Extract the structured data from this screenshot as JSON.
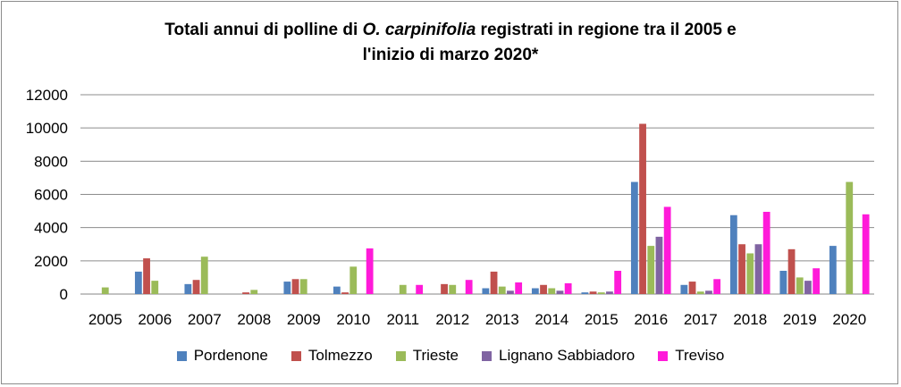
{
  "title": {
    "pre": "Totali annui di polline di ",
    "italic": "O. carpinifolia",
    "post": " registrati in regione tra il 2005 e",
    "line2": "l'inizio di marzo 2020*"
  },
  "chart_data": {
    "type": "bar",
    "title": "Totali annui di polline di O. carpinifolia registrati in regione tra il 2005 e l'inizio di marzo 2020*",
    "xlabel": "",
    "ylabel": "",
    "ylim": [
      0,
      12000
    ],
    "yticks": [
      0,
      2000,
      4000,
      6000,
      8000,
      10000,
      12000
    ],
    "ytick_labels": [
      "0",
      "2000",
      "4000",
      "6000",
      "8000",
      "10000",
      "12000"
    ],
    "grid": true,
    "legend_position": "bottom",
    "categories": [
      "2005",
      "2006",
      "2007",
      "2008",
      "2009",
      "2010",
      "2011",
      "2012",
      "2013",
      "2014",
      "2015",
      "2016",
      "2017",
      "2018",
      "2019",
      "2020"
    ],
    "series": [
      {
        "name": "Pordenone",
        "color": "#4f81bd",
        "values": [
          0,
          1350,
          600,
          0,
          750,
          450,
          0,
          0,
          350,
          350,
          100,
          6750,
          550,
          4750,
          1400,
          2900
        ]
      },
      {
        "name": "Tolmezzo",
        "color": "#c0504d",
        "values": [
          0,
          2150,
          850,
          100,
          900,
          100,
          0,
          600,
          1350,
          550,
          150,
          10250,
          750,
          3000,
          2700,
          0
        ]
      },
      {
        "name": "Trieste",
        "color": "#9bbb59",
        "values": [
          400,
          800,
          2250,
          250,
          900,
          1650,
          550,
          550,
          450,
          350,
          100,
          2900,
          150,
          2450,
          1000,
          6750
        ]
      },
      {
        "name": "Lignano Sabbiadoro",
        "color": "#8064a2",
        "values": [
          0,
          0,
          0,
          0,
          0,
          0,
          0,
          0,
          200,
          200,
          150,
          3450,
          200,
          3000,
          800,
          0
        ]
      },
      {
        "name": "Treviso",
        "color": "#ff1ad9",
        "values": [
          0,
          0,
          0,
          0,
          0,
          2750,
          550,
          850,
          700,
          650,
          1400,
          5250,
          900,
          4950,
          1550,
          4800
        ]
      }
    ]
  }
}
